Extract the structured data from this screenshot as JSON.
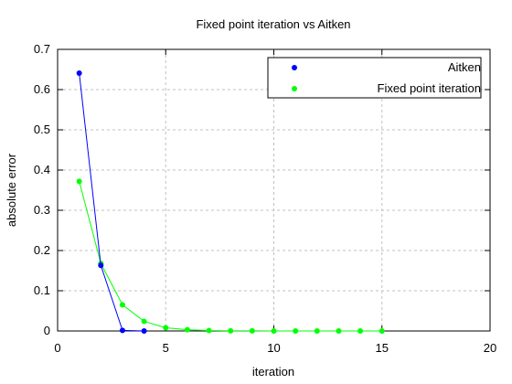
{
  "chart_data": {
    "type": "line",
    "title": "Fixed point iteration vs Aitken",
    "xlabel": "iteration",
    "ylabel": "absolute error",
    "xlim": [
      0,
      20
    ],
    "ylim": [
      0,
      0.7
    ],
    "xticks": [
      0,
      5,
      10,
      15,
      20
    ],
    "yticks": [
      0,
      0.1,
      0.2,
      0.3,
      0.4,
      0.5,
      0.6,
      0.7
    ],
    "grid": true,
    "legend_position": "top-right",
    "series": [
      {
        "name": "Aitken",
        "color": "#0000ff",
        "x": [
          1,
          2,
          3,
          4
        ],
        "y": [
          0.641,
          0.163,
          0.0015,
          0.0
        ]
      },
      {
        "name": "Fixed point iteration",
        "color": "#00ff00",
        "x": [
          1,
          2,
          3,
          4,
          5,
          6,
          7,
          8,
          9,
          10,
          11,
          12,
          13,
          14,
          15
        ],
        "y": [
          0.372,
          0.168,
          0.065,
          0.024,
          0.008,
          0.003,
          0.001,
          0.0004,
          0.0002,
          0.0001,
          0.0,
          0.0,
          0.0,
          0.0,
          0.0
        ]
      }
    ]
  }
}
